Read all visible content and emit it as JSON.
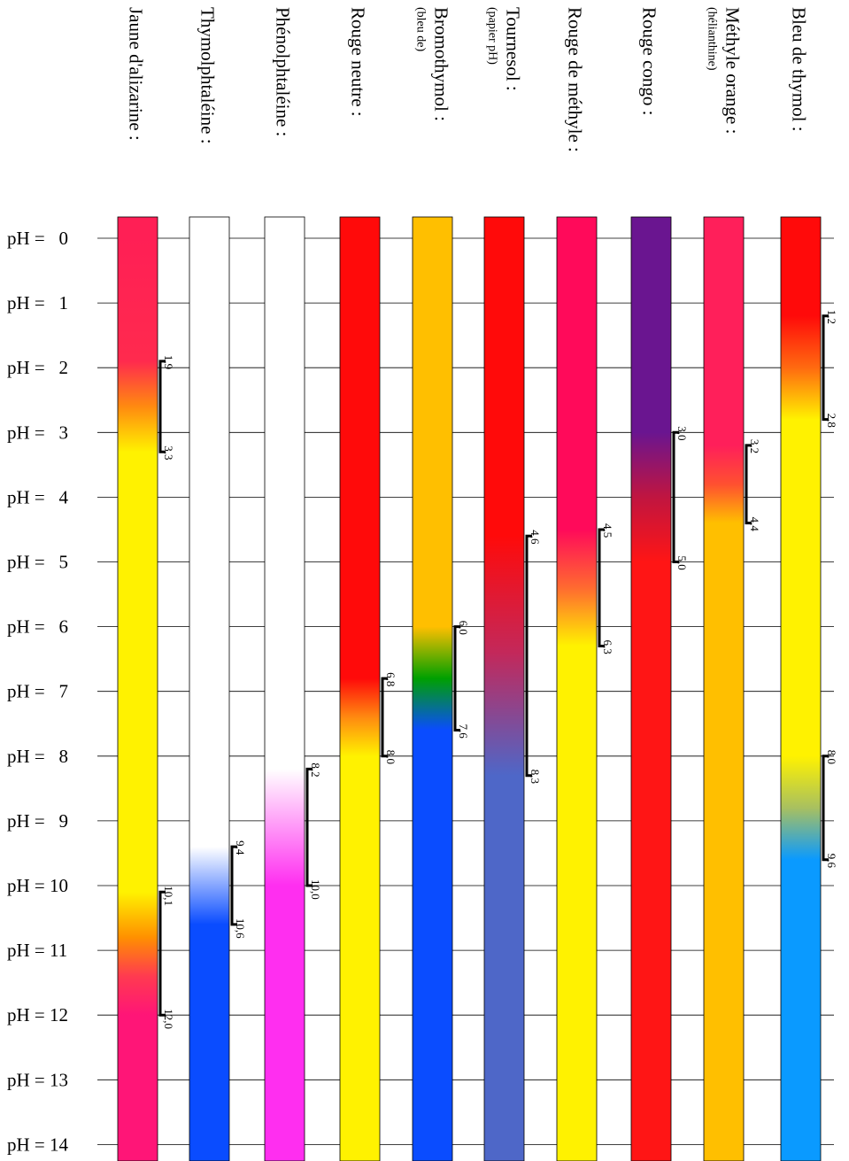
{
  "chart_data": {
    "type": "diagram",
    "ph_label_prefix": "pH =",
    "ph_values": [
      "0",
      "1",
      "2",
      "3",
      "4",
      "5",
      "6",
      "7",
      "8",
      "9",
      "10",
      "11",
      "12",
      "13",
      "14"
    ],
    "indicators": [
      {
        "name": "Jaune d'alizarine :",
        "subtitle": "",
        "stops": [
          {
            "ph": 0,
            "color": "#ff1f55"
          },
          {
            "ph": 1.9,
            "color": "#ff2a4e"
          },
          {
            "ph": 2.6,
            "color": "#ff8a10"
          },
          {
            "ph": 3.3,
            "color": "#fff200"
          },
          {
            "ph": 10.1,
            "color": "#fff200"
          },
          {
            "ph": 10.8,
            "color": "#ff9000"
          },
          {
            "ph": 11.4,
            "color": "#ff3a50"
          },
          {
            "ph": 12.0,
            "color": "#ff1577"
          },
          {
            "ph": 14.5,
            "color": "#ff1577"
          }
        ],
        "transitions": [
          {
            "from": 1.9,
            "to": 3.3,
            "from_label": "1,9",
            "to_label": "3,3"
          },
          {
            "from": 10.1,
            "to": 12.0,
            "from_label": "10,1",
            "to_label": "12,0"
          }
        ]
      },
      {
        "name": "Thymolphtaléine :",
        "subtitle": "",
        "stops": [
          {
            "ph": 0,
            "color": "#ffffff"
          },
          {
            "ph": 9.4,
            "color": "#ffffff"
          },
          {
            "ph": 10.6,
            "color": "#0a4cff"
          },
          {
            "ph": 14.5,
            "color": "#0a4cff"
          }
        ],
        "transitions": [
          {
            "from": 9.4,
            "to": 10.6,
            "from_label": "9,4",
            "to_label": "10,6"
          }
        ]
      },
      {
        "name": "Phénolphtaléine :",
        "subtitle": "",
        "stops": [
          {
            "ph": 0,
            "color": "#ffffff"
          },
          {
            "ph": 8.2,
            "color": "#ffffff"
          },
          {
            "ph": 10.0,
            "color": "#ff2ef0"
          },
          {
            "ph": 14.5,
            "color": "#ff2ef0"
          }
        ],
        "transitions": [
          {
            "from": 8.2,
            "to": 10.0,
            "from_label": "8,2",
            "to_label": "10,0"
          }
        ]
      },
      {
        "name": "Rouge neutre :",
        "subtitle": "",
        "stops": [
          {
            "ph": 0,
            "color": "#ff0a0a"
          },
          {
            "ph": 6.8,
            "color": "#ff0a0a"
          },
          {
            "ph": 7.4,
            "color": "#ff8a10"
          },
          {
            "ph": 8.0,
            "color": "#fff200"
          },
          {
            "ph": 14.5,
            "color": "#fff200"
          }
        ],
        "transitions": [
          {
            "from": 6.8,
            "to": 8.0,
            "from_label": "6,8",
            "to_label": "8,0"
          }
        ]
      },
      {
        "name": "Bromothymol :",
        "subtitle": "(bleu de)",
        "stops": [
          {
            "ph": 0,
            "color": "#ffbf00"
          },
          {
            "ph": 6.0,
            "color": "#ffbf00"
          },
          {
            "ph": 6.8,
            "color": "#00a000"
          },
          {
            "ph": 7.6,
            "color": "#0a4cff"
          },
          {
            "ph": 14.5,
            "color": "#0a4cff"
          }
        ],
        "transitions": [
          {
            "from": 6.0,
            "to": 7.6,
            "from_label": "6,0",
            "to_label": "7,6"
          }
        ]
      },
      {
        "name": "Tournesol :",
        "subtitle": "(papier pH)",
        "stops": [
          {
            "ph": 0,
            "color": "#ff0a0a"
          },
          {
            "ph": 4.6,
            "color": "#ff0a0a"
          },
          {
            "ph": 6.4,
            "color": "#c3285a"
          },
          {
            "ph": 8.3,
            "color": "#4e67c8"
          },
          {
            "ph": 14.5,
            "color": "#4e67c8"
          }
        ],
        "transitions": [
          {
            "from": 4.6,
            "to": 8.3,
            "from_label": "4,6",
            "to_label": "8,3"
          }
        ]
      },
      {
        "name": "Rouge de méthyle :",
        "subtitle": "",
        "stops": [
          {
            "ph": 0,
            "color": "#ff0a5a"
          },
          {
            "ph": 4.5,
            "color": "#ff0a5a"
          },
          {
            "ph": 5.4,
            "color": "#ff6a30"
          },
          {
            "ph": 6.3,
            "color": "#fff200"
          },
          {
            "ph": 14.5,
            "color": "#fff200"
          }
        ],
        "transitions": [
          {
            "from": 4.5,
            "to": 6.3,
            "from_label": "4,5",
            "to_label": "6,3"
          }
        ]
      },
      {
        "name": "Rouge congo :",
        "subtitle": "",
        "stops": [
          {
            "ph": 0,
            "color": "#6a1590"
          },
          {
            "ph": 3.0,
            "color": "#6a1590"
          },
          {
            "ph": 4.0,
            "color": "#c01540"
          },
          {
            "ph": 5.0,
            "color": "#ff1515"
          },
          {
            "ph": 14.5,
            "color": "#ff1515"
          }
        ],
        "transitions": [
          {
            "from": 3.0,
            "to": 5.0,
            "from_label": "3,0",
            "to_label": "5,0"
          }
        ]
      },
      {
        "name": "Méthyle orange :",
        "subtitle": "(hélianthine)",
        "stops": [
          {
            "ph": 0,
            "color": "#ff1f5a"
          },
          {
            "ph": 3.2,
            "color": "#ff1f5a"
          },
          {
            "ph": 3.8,
            "color": "#ff5030"
          },
          {
            "ph": 4.4,
            "color": "#ffbf00"
          },
          {
            "ph": 14.5,
            "color": "#ffbf00"
          }
        ],
        "transitions": [
          {
            "from": 3.2,
            "to": 4.4,
            "from_label": "3,2",
            "to_label": "4,4"
          }
        ]
      },
      {
        "name": "Bleu de thymol :",
        "subtitle": "",
        "stops": [
          {
            "ph": 0,
            "color": "#ff0a0a"
          },
          {
            "ph": 1.2,
            "color": "#ff0a0a"
          },
          {
            "ph": 2.0,
            "color": "#ff6a10"
          },
          {
            "ph": 2.8,
            "color": "#fff200"
          },
          {
            "ph": 8.0,
            "color": "#fff200"
          },
          {
            "ph": 8.8,
            "color": "#a8c060"
          },
          {
            "ph": 9.6,
            "color": "#0a9aff"
          },
          {
            "ph": 14.5,
            "color": "#0a9aff"
          }
        ],
        "transitions": [
          {
            "from": 1.2,
            "to": 2.8,
            "from_label": "1,2",
            "to_label": "2,8"
          },
          {
            "from": 8.0,
            "to": 9.6,
            "from_label": "8,0",
            "to_label": "9,6"
          }
        ]
      }
    ]
  }
}
